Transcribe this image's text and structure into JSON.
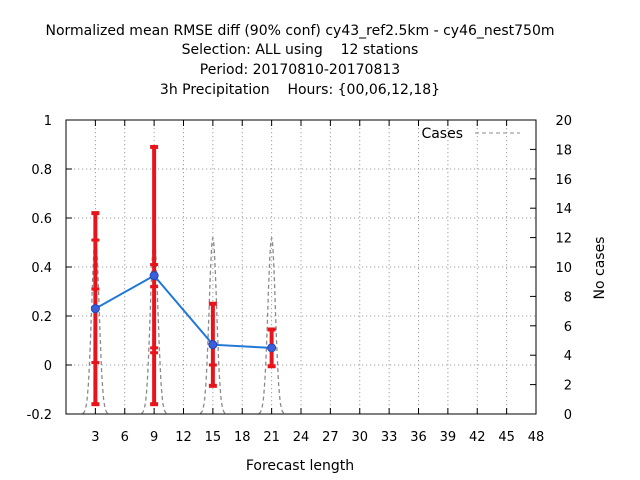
{
  "chart_data": {
    "type": "line",
    "title_lines": [
      "Normalized mean RMSE diff (90% conf) cy43_ref2.5km - cy46_nest750m",
      "Selection: ALL using    12 stations",
      "Period: 20170810-20170813",
      "3h Precipitation    Hours: {00,06,12,18}"
    ],
    "xlabel": "Forecast length",
    "ylabel_right": "No cases",
    "xlim": [
      0,
      48
    ],
    "x_ticks": [
      3,
      6,
      9,
      12,
      15,
      18,
      21,
      24,
      27,
      30,
      33,
      36,
      39,
      42,
      45,
      48
    ],
    "ylim": [
      -0.2,
      1
    ],
    "y_ticks": [
      -0.2,
      0,
      0.2,
      0.4,
      0.6,
      0.8,
      1
    ],
    "y_tick_labels": [
      "-0.2",
      "0",
      "0.2",
      "0.4",
      "0.6",
      "0.8",
      "1"
    ],
    "y2lim": [
      0,
      20
    ],
    "y2_ticks": [
      0,
      2,
      4,
      6,
      8,
      10,
      12,
      14,
      16,
      18,
      20
    ],
    "grid": true,
    "legend": {
      "position": "top-right",
      "label": "Cases"
    },
    "series": [
      {
        "kind": "mean_rmse_diff",
        "color": "#1f77d6",
        "marker_color": "#3a5fd8",
        "x": [
          3,
          9,
          15,
          21
        ],
        "values": [
          0.23,
          0.365,
          0.083,
          0.07
        ]
      }
    ],
    "error_bars": {
      "color": "#e8141c",
      "x": [
        3,
        9,
        15,
        21
      ],
      "lower": [
        -0.16,
        -0.16,
        -0.085,
        -0.005
      ],
      "upper": [
        0.62,
        0.89,
        0.25,
        0.145
      ],
      "inner_marks": [
        [
          0.01,
          0.31,
          0.51
        ],
        [
          0.05,
          0.07,
          0.32,
          0.41
        ],
        [
          0.0
        ],
        []
      ]
    },
    "cases": {
      "name": "Cases",
      "color": "#8a8a8a",
      "x": [
        3,
        9,
        15,
        21
      ],
      "values": [
        12,
        12,
        12,
        12
      ]
    }
  }
}
